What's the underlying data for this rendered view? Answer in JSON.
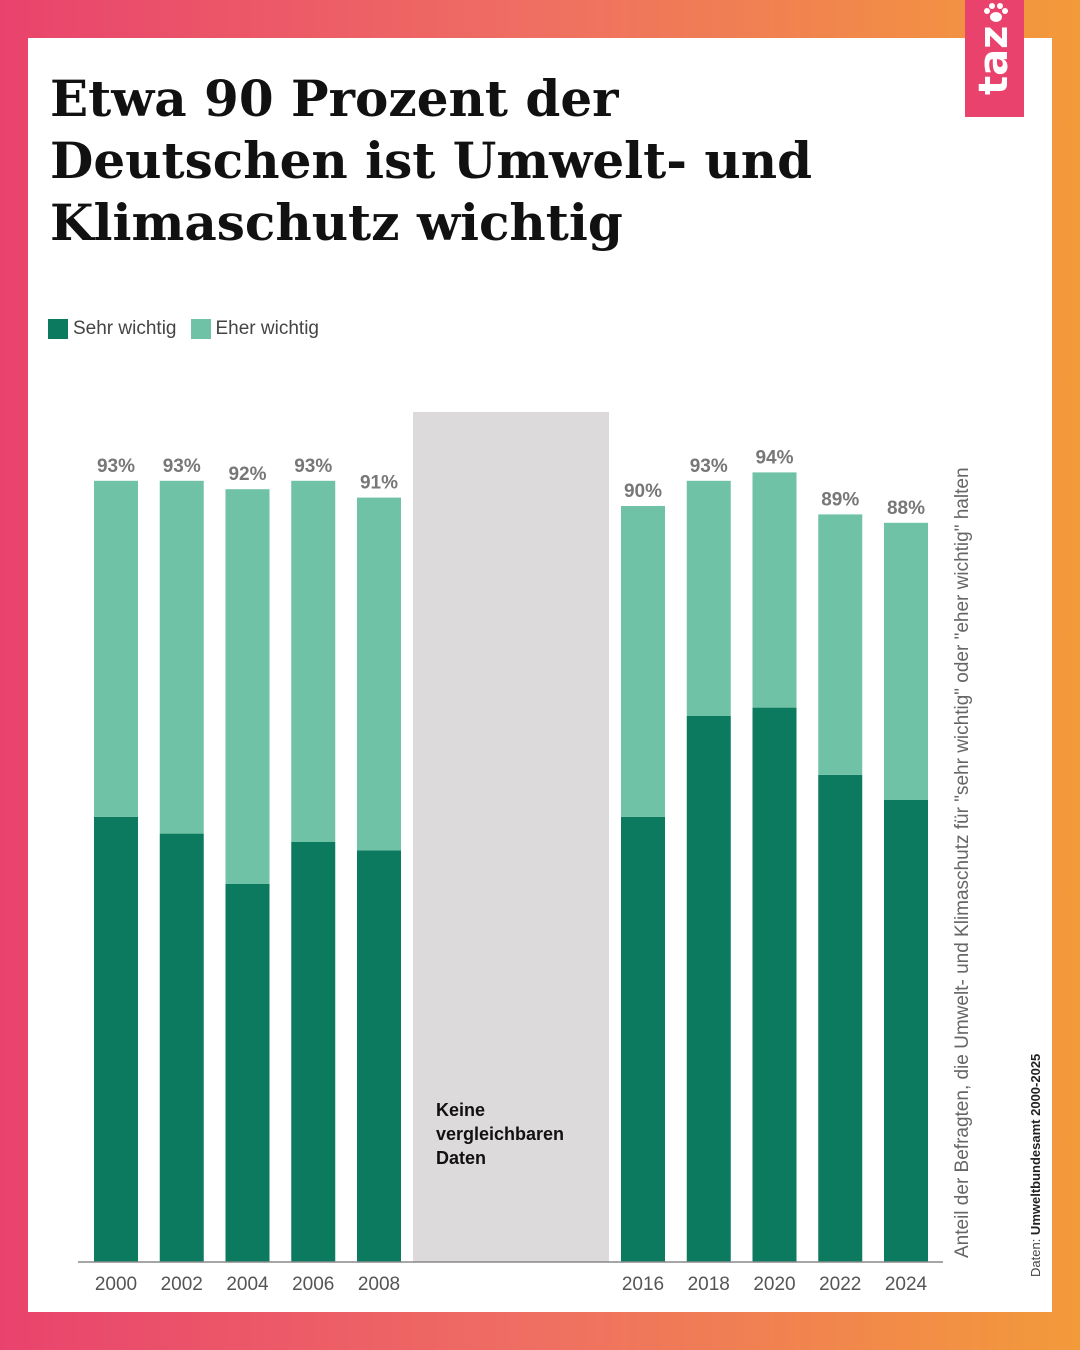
{
  "title": "Etwa 90 Prozent der Deutschen ist Umwelt- und Klimaschutz wichtig",
  "side_label": "Anteil der Befragten, die Umwelt- und Klimaschutz für \"sehr wichtig\" oder \"eher wichtig\" halten",
  "source": {
    "prefix": "Daten:",
    "name": "Umweltbundesamt 2000-2025"
  },
  "logo": {
    "text": "taz",
    "icon": "paw-icon"
  },
  "colors": {
    "sehr": "#0b7a5e",
    "eher": "#6fc2a5",
    "gap": "#dcdadb",
    "total_label": "#777777",
    "axis": "#555555"
  },
  "chart_data": {
    "type": "bar",
    "stacked": true,
    "categories": [
      "2000",
      "2002",
      "2004",
      "2006",
      "2008",
      "2016",
      "2018",
      "2020",
      "2022",
      "2024"
    ],
    "series": [
      {
        "name": "Sehr wichtig",
        "values": [
          53,
          51,
          45,
          50,
          49,
          53,
          65,
          66,
          58,
          55
        ]
      },
      {
        "name": "Eher wichtig",
        "values": [
          40,
          42,
          47,
          43,
          42,
          37,
          28,
          28,
          31,
          33
        ]
      }
    ],
    "totals": [
      "93%",
      "93%",
      "92%",
      "93%",
      "91%",
      "90%",
      "93%",
      "94%",
      "89%",
      "88%"
    ],
    "gap": {
      "after": "2008",
      "lines": [
        "Keine",
        "vergleichbaren",
        "Daten"
      ]
    },
    "ylim": [
      0,
      100
    ],
    "legend_position": "top-left",
    "grid": false
  }
}
